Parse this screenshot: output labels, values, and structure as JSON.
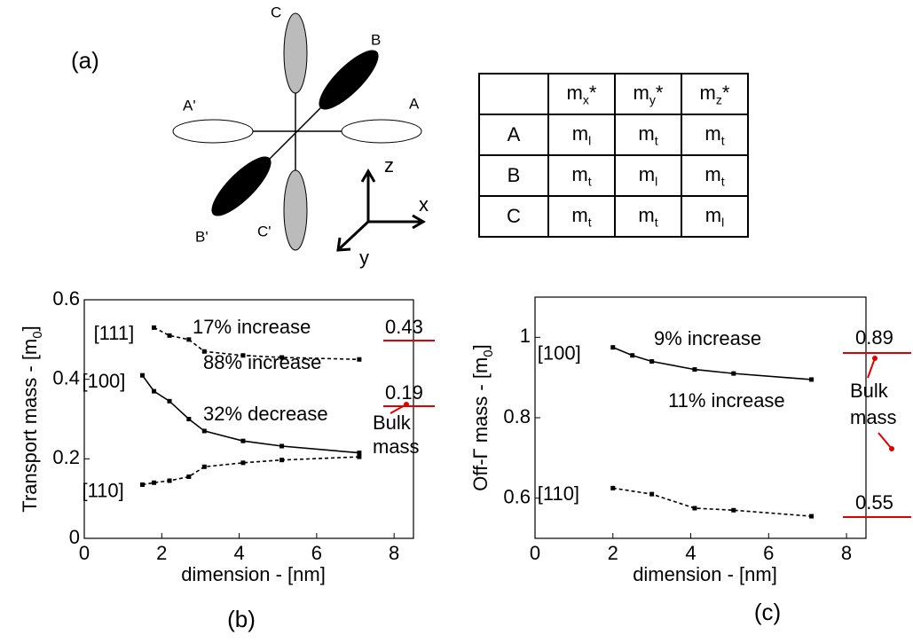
{
  "figure_a": {
    "label": "(a)",
    "valleys": [
      "A",
      "A'",
      "B",
      "B'",
      "C",
      "C'"
    ],
    "axes": [
      "z",
      "x",
      "y"
    ]
  },
  "table": {
    "header": [
      {
        "main": "m",
        "sub": "x",
        "tail": "*"
      },
      {
        "main": "m",
        "sub": "y",
        "tail": "*"
      },
      {
        "main": "m",
        "sub": "z",
        "tail": "*"
      }
    ],
    "rows": [
      {
        "name": "A",
        "cells": [
          {
            "main": "m",
            "sub": "l"
          },
          {
            "main": "m",
            "sub": "t"
          },
          {
            "main": "m",
            "sub": "t"
          }
        ]
      },
      {
        "name": "B",
        "cells": [
          {
            "main": "m",
            "sub": "t"
          },
          {
            "main": "m",
            "sub": "l"
          },
          {
            "main": "m",
            "sub": "t"
          }
        ]
      },
      {
        "name": "C",
        "cells": [
          {
            "main": "m",
            "sub": "t"
          },
          {
            "main": "m",
            "sub": "t"
          },
          {
            "main": "m",
            "sub": "l"
          }
        ]
      }
    ]
  },
  "chart_data": [
    {
      "type": "line",
      "caption": "(b)",
      "xlabel": "dimension - [nm]",
      "ylabel": {
        "text": "Transport mass - [m",
        "sub": "0",
        "end": "]"
      },
      "xlim": [
        0,
        8.5
      ],
      "xticks": [
        0,
        2,
        4,
        6,
        8
      ],
      "ylim": [
        0,
        0.6
      ],
      "yticks": [
        0,
        0.2,
        0.4,
        0.6
      ],
      "series": [
        {
          "name": "[111]",
          "color": "#000000",
          "linestyle": "dashed",
          "x": [
            1.8,
            2.2,
            2.7,
            3.1,
            4.1,
            5.1,
            7.1
          ],
          "values": [
            0.53,
            0.51,
            0.5,
            0.47,
            0.46,
            0.455,
            0.45
          ]
        },
        {
          "name": "[100]",
          "color": "#000000",
          "linestyle": "solid",
          "x": [
            1.5,
            1.8,
            2.2,
            2.7,
            3.1,
            4.1,
            5.1,
            7.1
          ],
          "values": [
            0.41,
            0.37,
            0.345,
            0.3,
            0.27,
            0.245,
            0.232,
            0.215
          ]
        },
        {
          "name": "[110]",
          "color": "#000000",
          "linestyle": "dashed",
          "x": [
            1.5,
            1.8,
            2.2,
            2.7,
            3.1,
            4.1,
            5.1,
            7.1
          ],
          "values": [
            0.135,
            0.14,
            0.145,
            0.155,
            0.18,
            0.19,
            0.197,
            0.205
          ]
        }
      ],
      "annotations": [
        {
          "text": "17% increase",
          "color": "#000000"
        },
        {
          "text": "88% increase",
          "color": "#000000"
        },
        {
          "text": "32% decrease",
          "color": "#000000"
        },
        {
          "text": "0.43",
          "color": "#e00000"
        },
        {
          "text": "0.19",
          "color": "#e00000"
        },
        {
          "text": "Bulk",
          "color": "#e00000"
        },
        {
          "text": "mass",
          "color": "#e00000"
        }
      ]
    },
    {
      "type": "line",
      "caption": "(c)",
      "xlabel": "dimension - [nm]",
      "ylabel": {
        "text": "Off-Γ mass - [m",
        "sub": "0",
        "end": "]"
      },
      "xlim": [
        0,
        8.5
      ],
      "xticks": [
        0,
        2,
        4,
        6,
        8
      ],
      "ylim": [
        0.5,
        1.1
      ],
      "yticks": [
        0.6,
        0.8,
        1
      ],
      "series": [
        {
          "name": "[100]",
          "color": "#000000",
          "linestyle": "solid",
          "x": [
            2,
            2.5,
            3,
            4.1,
            5.1,
            7.1
          ],
          "values": [
            0.975,
            0.955,
            0.94,
            0.92,
            0.91,
            0.895
          ]
        },
        {
          "name": "[110]",
          "color": "#000000",
          "linestyle": "dashed",
          "x": [
            2,
            3,
            4.1,
            5.1,
            7.1
          ],
          "values": [
            0.625,
            0.61,
            0.575,
            0.57,
            0.555
          ]
        }
      ],
      "annotations": [
        {
          "text": "9% increase",
          "color": "#000000"
        },
        {
          "text": "11% increase",
          "color": "#000000"
        },
        {
          "text": "0.89",
          "color": "#e00000"
        },
        {
          "text": "0.55",
          "color": "#e00000"
        },
        {
          "text": "Bulk",
          "color": "#e00000"
        },
        {
          "text": "mass",
          "color": "#e00000"
        }
      ]
    }
  ]
}
